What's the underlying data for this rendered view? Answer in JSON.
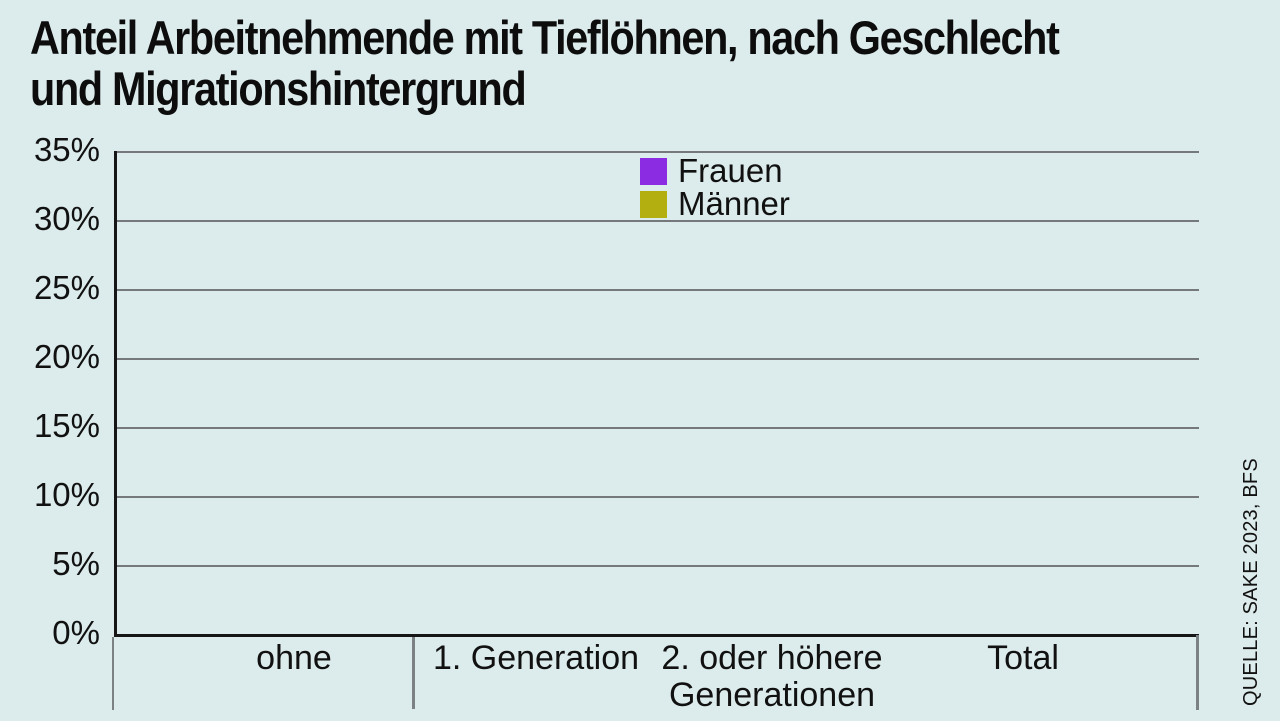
{
  "title": {
    "line1": "Anteil Arbeitnehmende mit Tieflöhnen, nach Geschlecht",
    "line2": "und Migrationshintergrund"
  },
  "source": "QUELLE: SAKE 2023, BFS",
  "colors": {
    "background": "#dcebeb",
    "gridline": "#75797b",
    "axis": "#161616",
    "frauen": "#8b2ce3",
    "maenner": "#b4af10"
  },
  "chart_data": {
    "type": "bar",
    "title": "Anteil Arbeitnehmende mit Tieflöhnen, nach Geschlecht und Migrationshintergrund",
    "categories": [
      "ohne",
      "1. Generation",
      "2. oder höhere\nGenerationen",
      "Total"
    ],
    "series": [
      {
        "name": "Frauen",
        "color": "#8b2ce3",
        "values": [
          0,
          0,
          0,
          0
        ]
      },
      {
        "name": "Männer",
        "color": "#b4af10",
        "values": [
          0,
          0,
          0,
          0
        ]
      }
    ],
    "yticks": [
      {
        "value": 35,
        "label": "35%"
      },
      {
        "value": 30,
        "label": "30%"
      },
      {
        "value": 25,
        "label": "25%"
      },
      {
        "value": 20,
        "label": "20%"
      },
      {
        "value": 15,
        "label": "15%"
      },
      {
        "value": 10,
        "label": "10%"
      },
      {
        "value": 5,
        "label": "5%"
      },
      {
        "value": 0,
        "label": "0%"
      }
    ],
    "ylim": [
      0,
      35
    ],
    "xlabel": "",
    "ylabel": "",
    "grid": true,
    "legend_position": "top-center",
    "note_visible_bars": "no bars rendered (all series at zero height in screenshot)"
  }
}
